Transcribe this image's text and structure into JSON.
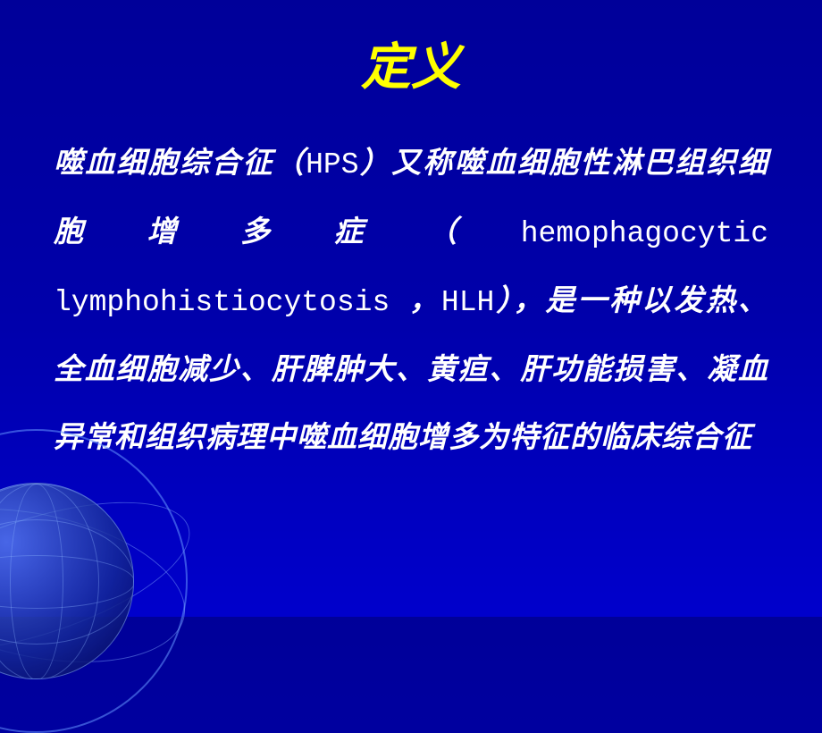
{
  "slide": {
    "background_gradient": [
      "#000099",
      "#0000AA",
      "#0000CC"
    ],
    "title": {
      "text": "定义",
      "color": "#FFFF00",
      "fontsize": 56,
      "font_family": "KaiTi",
      "font_style": "italic",
      "font_weight": "bold"
    },
    "body": {
      "color": "#FFFFFF",
      "fontsize": 33,
      "line_height": 2.3,
      "cjk_font_family": "KaiTi",
      "latin_font_family": "SimSun",
      "segments": [
        {
          "text": "噬血细胞综合征（",
          "style": "cjk"
        },
        {
          "text": "HPS",
          "style": "latin"
        },
        {
          "text": "）又称噬血细胞性淋巴组织细胞增多症（",
          "style": "cjk"
        },
        {
          "text": "hemophagocytic lymphohistiocytosis ",
          "style": "latin"
        },
        {
          "text": "，",
          "style": "cjk"
        },
        {
          "text": "HLH",
          "style": "latin"
        },
        {
          "text": "），是一种以发热、全血细胞减少、肝脾肿大、黄疸、肝功能损害、凝血异常和组织病理中噬血细胞增多为特征的临床综合征",
          "style": "cjk"
        }
      ]
    },
    "decoration": {
      "type": "globe-wireframe",
      "position": "bottom-left",
      "ring_color": "rgba(100,150,255,0.55)",
      "sphere_gradient": [
        "rgba(120,170,255,0.6)",
        "rgba(20,40,150,0.85)",
        "rgba(0,0,80,0.9)"
      ],
      "meridian_color": "rgba(140,180,255,0.35)"
    }
  }
}
